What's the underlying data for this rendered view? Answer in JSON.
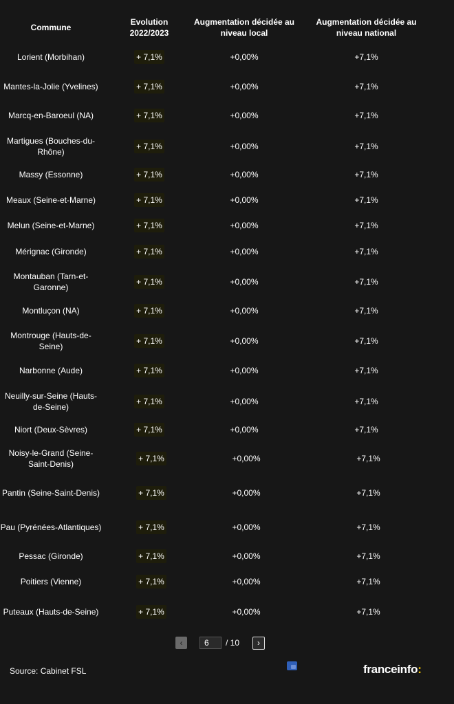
{
  "header": {
    "commune": "Commune",
    "evolution": "Evolution 2022/2023",
    "local": "Augmentation décidée au niveau local",
    "national": "Augmentation décidée au niveau national"
  },
  "rows": [
    {
      "commune": "Lorient (Morbihan)",
      "evolution": "+ 7,1%",
      "local": "+0,00%",
      "national": "+7,1%"
    },
    {
      "commune": "Mantes-la-Jolie (Yvelines)",
      "evolution": "+ 7,1%",
      "local": "+0,00%",
      "national": "+7,1%"
    },
    {
      "commune": "Marcq-en-Baroeul (NA)",
      "evolution": "+ 7,1%",
      "local": "+0,00%",
      "national": "+7,1%"
    },
    {
      "commune": "Martigues (Bouches-du-Rhône)",
      "evolution": "+ 7,1%",
      "local": "+0,00%",
      "national": "+7,1%"
    },
    {
      "commune": "Massy (Essonne)",
      "evolution": "+ 7,1%",
      "local": "+0,00%",
      "national": "+7,1%"
    },
    {
      "commune": "Meaux (Seine-et-Marne)",
      "evolution": "+ 7,1%",
      "local": "+0,00%",
      "national": "+7,1%"
    },
    {
      "commune": "Melun (Seine-et-Marne)",
      "evolution": "+ 7,1%",
      "local": "+0,00%",
      "national": "+7,1%"
    },
    {
      "commune": "Mérignac (Gironde)",
      "evolution": "+ 7,1%",
      "local": "+0,00%",
      "national": "+7,1%"
    },
    {
      "commune": "Montauban (Tarn-et-Garonne)",
      "evolution": "+ 7,1%",
      "local": "+0,00%",
      "national": "+7,1%"
    },
    {
      "commune": "Montluçon (NA)",
      "evolution": "+ 7,1%",
      "local": "+0,00%",
      "national": "+7,1%"
    },
    {
      "commune": "Montrouge (Hauts-de-Seine)",
      "evolution": "+ 7,1%",
      "local": "+0,00%",
      "national": "+7,1%"
    },
    {
      "commune": "Narbonne (Aude)",
      "evolution": "+ 7,1%",
      "local": "+0,00%",
      "national": "+7,1%"
    },
    {
      "commune": "Neuilly-sur-Seine (Hauts-de-Seine)",
      "evolution": "+ 7,1%",
      "local": "+0,00%",
      "national": "+7,1%"
    },
    {
      "commune": "Niort (Deux-Sèvres)",
      "evolution": "+ 7,1%",
      "local": "+0,00%",
      "national": "+7,1%"
    },
    {
      "commune": "Noisy-le-Grand (Seine-Saint-Denis)",
      "evolution": "+ 7,1%",
      "local": "+0,00%",
      "national": "+7,1%"
    },
    {
      "commune": "Pantin (Seine-Saint-Denis)",
      "evolution": "+ 7,1%",
      "local": "+0,00%",
      "national": "+7,1%"
    },
    {
      "commune": "Pau (Pyrénées-Atlantiques)",
      "evolution": "+ 7,1%",
      "local": "+0,00%",
      "national": "+7,1%"
    },
    {
      "commune": "Pessac (Gironde)",
      "evolution": "+ 7,1%",
      "local": "+0,00%",
      "national": "+7,1%"
    },
    {
      "commune": "Poitiers (Vienne)",
      "evolution": "+ 7,1%",
      "local": "+0,00%",
      "national": "+7,1%"
    },
    {
      "commune": "Puteaux (Hauts-de-Seine)",
      "evolution": "+ 7,1%",
      "local": "+0,00%",
      "national": "+7,1%"
    }
  ],
  "pagination": {
    "prev_label": "‹",
    "next_label": "›",
    "current_page": "6",
    "total_label": "/ 10"
  },
  "footer": {
    "source": "Source: Cabinet FSL",
    "logo_text": "franceinfo",
    "logo_colon": ":"
  },
  "colors": {
    "background": "#171717",
    "pill_background": "#1e1d0b",
    "logo_accent": "#f2c500"
  },
  "icons": {
    "translate": "translate-icon"
  }
}
